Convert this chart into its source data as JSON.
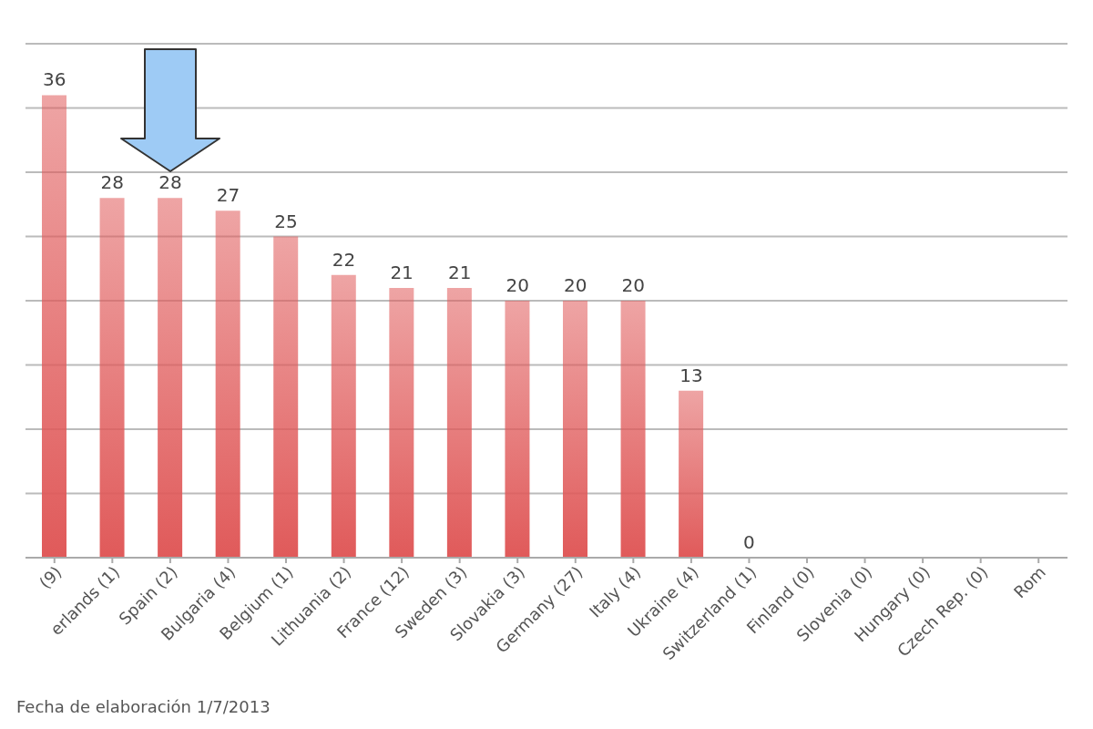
{
  "chart_data": {
    "type": "bar",
    "categories": [
      "(9)",
      "erlands (1)",
      "Spain (2)",
      "Bulgaria (4)",
      "Belgium (1)",
      "Lithuania (2)",
      "France (12)",
      "Sweden (3)",
      "Slovakia (3)",
      "Germany (27)",
      "Italy (4)",
      "Ukraine (4)",
      "Switzerland (1)",
      "Finland (0)",
      "Slovenia (0)",
      "Hungary (0)",
      "Czech Rep. (0)",
      "Rom"
    ],
    "values": [
      36,
      28,
      28,
      27,
      25,
      22,
      21,
      21,
      20,
      20,
      20,
      13,
      0,
      null,
      null,
      null,
      null,
      null
    ],
    "color": "#e05a5a",
    "data_labels": true,
    "ylim": [
      0,
      40
    ],
    "yticks": [
      {
        "value": 0,
        "label": null
      },
      {
        "value": 5,
        "label": null
      },
      {
        "value": 10,
        "label": null
      },
      {
        "value": 15,
        "label": null
      },
      {
        "value": 20,
        "label": null
      },
      {
        "value": 25,
        "label": null
      },
      {
        "value": 30,
        "label": null
      },
      {
        "value": 35,
        "label": null
      },
      {
        "value": 40,
        "label": null
      }
    ],
    "tick_labels": "x",
    "grid": "y",
    "annotations": [
      "Fecha de elaboración 1/7/2013"
    ]
  }
}
